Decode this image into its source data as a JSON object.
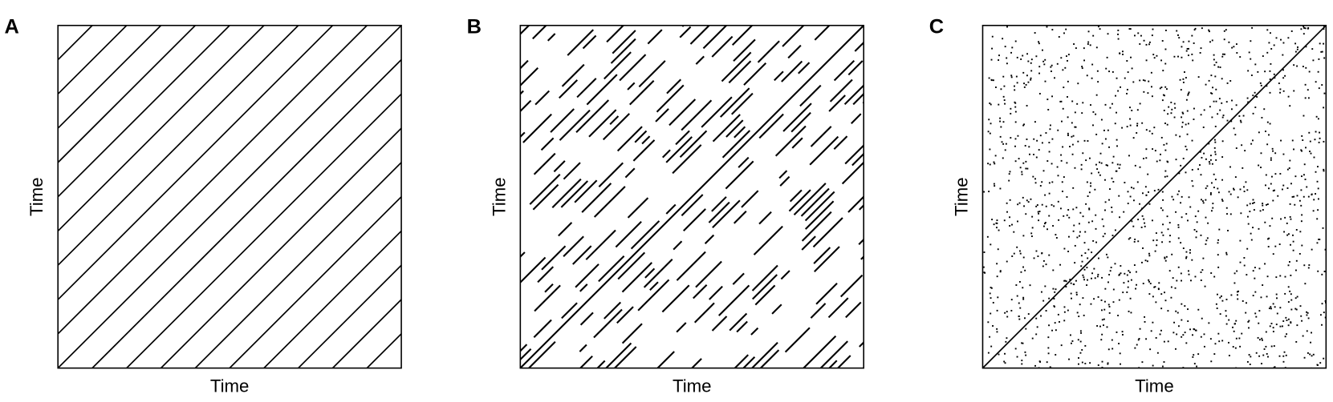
{
  "panels": [
    {
      "label": "A",
      "x_label": "Time",
      "y_label": "Time"
    },
    {
      "label": "B",
      "x_label": "Time",
      "y_label": "Time"
    },
    {
      "label": "C",
      "x_label": "Time",
      "y_label": "Time"
    }
  ]
}
